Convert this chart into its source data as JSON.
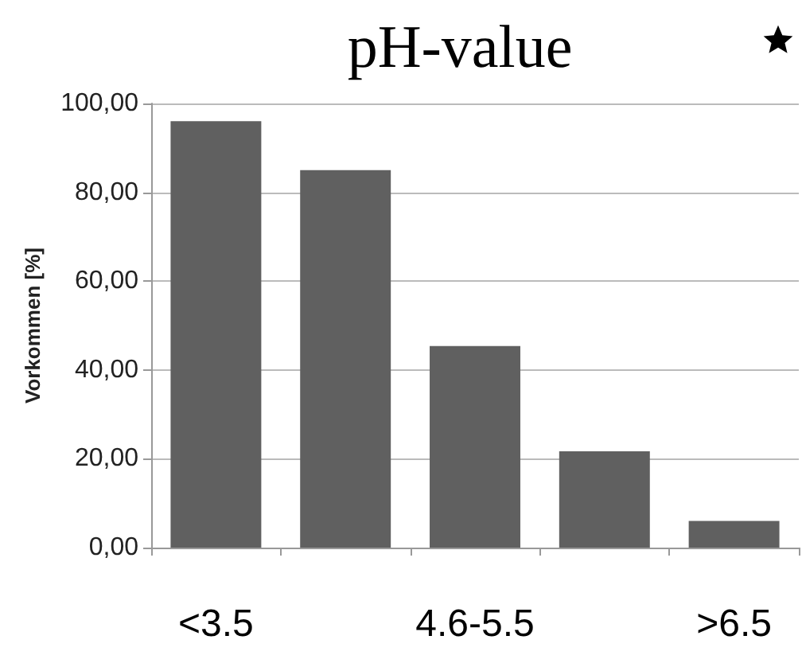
{
  "chart_data": {
    "type": "bar",
    "title": "pH-value",
    "ylabel": "Vorkommen [%]",
    "categories": [
      "<3.5",
      null,
      "4.6-5.5",
      null,
      ">6.5"
    ],
    "values": [
      96.0,
      85.0,
      45.4,
      21.7,
      6.0
    ],
    "color": "#606060",
    "ylim": [
      0,
      100
    ],
    "yticks": [
      {
        "value": 0,
        "label": "0,00"
      },
      {
        "value": 20,
        "label": "20,00"
      },
      {
        "value": 40,
        "label": "40,00"
      },
      {
        "value": 60,
        "label": "60,00"
      },
      {
        "value": 80,
        "label": "80,00"
      },
      {
        "value": 100,
        "label": "100,00"
      }
    ],
    "grid": "y"
  }
}
